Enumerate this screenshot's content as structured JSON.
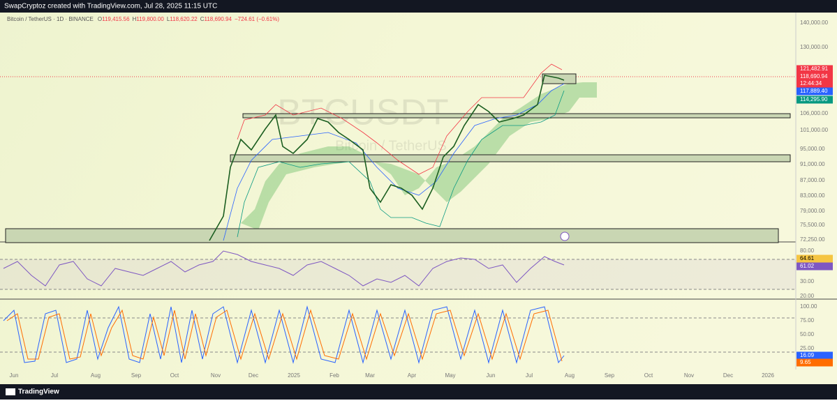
{
  "header": {
    "title": "SwapCryptoz created with TradingView.com, Jul 28, 2025 11:15 UTC"
  },
  "legend": {
    "symbol": "Bitcoin / TetherUS · 1D · BINANCE",
    "ohlc": [
      {
        "label": "O",
        "value": "119,415.56"
      },
      {
        "label": "H",
        "value": "119,800.00"
      },
      {
        "label": "L",
        "value": "118,620.22"
      },
      {
        "label": "C",
        "value": "118,690.94"
      }
    ],
    "change": "−724.61 (−0.61%)"
  },
  "watermark": {
    "symbol": "BTCUSDT",
    "description": "Bitcoin / TetherUS"
  },
  "price_axis": {
    "labels": [
      "140,000.00",
      "130,000.00",
      "106,000.00",
      "101,000.00",
      "95,000.00",
      "91,000.00",
      "87,000.00",
      "83,000.00",
      "79,000.00",
      "75,500.00",
      "72,250.00"
    ]
  },
  "price_tags": [
    {
      "label": "121,482.91",
      "color": "#f23645"
    },
    {
      "label": "118,690.94",
      "color": "#f23645"
    },
    {
      "label": "12:44:34",
      "color": "#f23645"
    },
    {
      "label": "117,889.40",
      "color": "#2962ff"
    },
    {
      "label": "114,295.90",
      "color": "#089981"
    }
  ],
  "rsi_axis": {
    "labels": [
      "80.00",
      "30.00",
      "20.00"
    ]
  },
  "rsi_tags": [
    {
      "label": "64.61",
      "color": "#f5c542"
    },
    {
      "label": "61.02",
      "color": "#7e57c2"
    }
  ],
  "stoch_axis": {
    "labels": [
      "100.00",
      "75.00",
      "50.00",
      "25.00"
    ]
  },
  "stoch_tags": [
    {
      "label": "16.09",
      "color": "#2962ff"
    },
    {
      "label": "9.65",
      "color": "#ff6d00"
    }
  ],
  "time_axis": {
    "labels": [
      "Jun",
      "Jul",
      "Aug",
      "Sep",
      "Oct",
      "Nov",
      "Dec",
      "2025",
      "Feb",
      "Mar",
      "Apr",
      "May",
      "Jun",
      "Jul",
      "Aug",
      "Sep",
      "Oct",
      "Nov",
      "Dec",
      "2026"
    ]
  },
  "footer": {
    "brand": "TradingView"
  }
}
